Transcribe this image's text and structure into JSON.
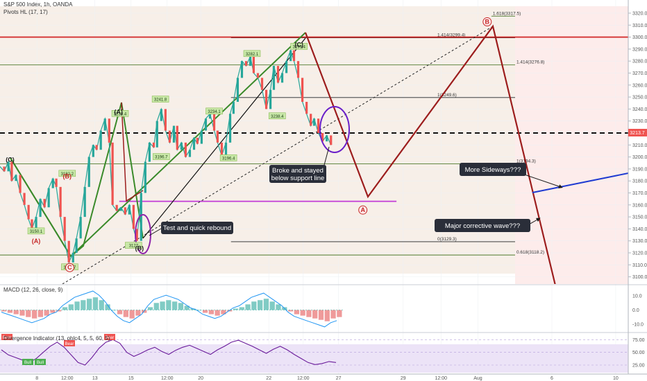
{
  "chart_data": {
    "type": "line",
    "title": "S&P 500 Index, 1h, OANDA",
    "indicator": "Pivots HL (17, 17)",
    "price_axis": {
      "min": 3090,
      "max": 3320,
      "ticks": [
        "3320.0",
        "3310.0",
        "3300.0",
        "3290.0",
        "3280.0",
        "3270.0",
        "3260.0",
        "3250.0",
        "3240.0",
        "3230.0",
        "3220.0",
        "3210.0",
        "3200.0",
        "3190.0",
        "3180.0",
        "3170.0",
        "3160.0",
        "3150.0",
        "3140.0",
        "3130.0",
        "3120.0",
        "3110.0",
        "3100.0",
        "3090.0"
      ],
      "last_price": "3213.7",
      "last_price_color": "#ef5350"
    },
    "time_axis": {
      "labels": [
        {
          "t": 4.4,
          "text": "8"
        },
        {
          "t": 8.0,
          "text": "12:00"
        },
        {
          "t": 11.3,
          "text": "13"
        },
        {
          "t": 15.6,
          "text": "15"
        },
        {
          "t": 19.9,
          "text": "12:00"
        },
        {
          "t": 23.9,
          "text": "20"
        },
        {
          "t": 32.0,
          "text": "22"
        },
        {
          "t": 36.1,
          "text": "12:00"
        },
        {
          "t": 40.3,
          "text": "27"
        },
        {
          "t": 48.0,
          "text": "29"
        },
        {
          "t": 52.5,
          "text": "12:00"
        },
        {
          "t": 56.9,
          "text": "Aug"
        },
        {
          "t": 65.7,
          "text": "6"
        },
        {
          "t": 73.3,
          "text": "10"
        }
      ]
    },
    "price_series": [
      {
        "t": 0.0,
        "p": 3192
      },
      {
        "t": 0.5,
        "p": 3188
      },
      {
        "t": 1.0,
        "p": 3196
      },
      {
        "t": 1.4,
        "p": 3180
      },
      {
        "t": 1.9,
        "p": 3185
      },
      {
        "t": 2.4,
        "p": 3170
      },
      {
        "t": 2.9,
        "p": 3160
      },
      {
        "t": 3.4,
        "p": 3148
      },
      {
        "t": 3.8,
        "p": 3140
      },
      {
        "t": 4.3,
        "p": 3150
      },
      {
        "t": 4.8,
        "p": 3165
      },
      {
        "t": 5.3,
        "p": 3158
      },
      {
        "t": 5.8,
        "p": 3174
      },
      {
        "t": 6.3,
        "p": 3182
      },
      {
        "t": 6.7,
        "p": 3175
      },
      {
        "t": 7.2,
        "p": 3150
      },
      {
        "t": 7.7,
        "p": 3130
      },
      {
        "t": 8.2,
        "p": 3112
      },
      {
        "t": 8.7,
        "p": 3120
      },
      {
        "t": 9.1,
        "p": 3132
      },
      {
        "t": 9.6,
        "p": 3150
      },
      {
        "t": 10.1,
        "p": 3175
      },
      {
        "t": 10.6,
        "p": 3200
      },
      {
        "t": 11.1,
        "p": 3210
      },
      {
        "t": 11.5,
        "p": 3206
      },
      {
        "t": 12.0,
        "p": 3222
      },
      {
        "t": 12.5,
        "p": 3232
      },
      {
        "t": 13.0,
        "p": 3212
      },
      {
        "t": 13.4,
        "p": 3160
      },
      {
        "t": 13.9,
        "p": 3155
      },
      {
        "t": 14.4,
        "p": 3158
      },
      {
        "t": 14.9,
        "p": 3152
      },
      {
        "t": 15.4,
        "p": 3160
      },
      {
        "t": 15.9,
        "p": 3140
      },
      {
        "t": 16.3,
        "p": 3130
      },
      {
        "t": 16.8,
        "p": 3170
      },
      {
        "t": 17.3,
        "p": 3196
      },
      {
        "t": 17.8,
        "p": 3212
      },
      {
        "t": 18.3,
        "p": 3208
      },
      {
        "t": 18.7,
        "p": 3230
      },
      {
        "t": 19.2,
        "p": 3240
      },
      {
        "t": 19.7,
        "p": 3222
      },
      {
        "t": 20.2,
        "p": 3212
      },
      {
        "t": 20.7,
        "p": 3226
      },
      {
        "t": 21.1,
        "p": 3206
      },
      {
        "t": 21.6,
        "p": 3212
      },
      {
        "t": 22.1,
        "p": 3200
      },
      {
        "t": 22.6,
        "p": 3206
      },
      {
        "t": 23.1,
        "p": 3216
      },
      {
        "t": 23.5,
        "p": 3211
      },
      {
        "t": 24.0,
        "p": 3222
      },
      {
        "t": 24.5,
        "p": 3232
      },
      {
        "t": 25.0,
        "p": 3236
      },
      {
        "t": 25.5,
        "p": 3222
      },
      {
        "t": 25.9,
        "p": 3212
      },
      {
        "t": 26.4,
        "p": 3201
      },
      {
        "t": 26.9,
        "p": 3212
      },
      {
        "t": 27.4,
        "p": 3236
      },
      {
        "t": 27.8,
        "p": 3246
      },
      {
        "t": 28.3,
        "p": 3266
      },
      {
        "t": 28.8,
        "p": 3280
      },
      {
        "t": 29.3,
        "p": 3276
      },
      {
        "t": 29.8,
        "p": 3284
      },
      {
        "t": 30.2,
        "p": 3270
      },
      {
        "t": 30.7,
        "p": 3266
      },
      {
        "t": 31.2,
        "p": 3256
      },
      {
        "t": 31.7,
        "p": 3240
      },
      {
        "t": 32.2,
        "p": 3256
      },
      {
        "t": 32.6,
        "p": 3276
      },
      {
        "t": 33.1,
        "p": 3262
      },
      {
        "t": 33.6,
        "p": 3270
      },
      {
        "t": 34.1,
        "p": 3280
      },
      {
        "t": 34.6,
        "p": 3289
      },
      {
        "t": 35.0,
        "p": 3280
      },
      {
        "t": 35.5,
        "p": 3266
      },
      {
        "t": 36.0,
        "p": 3246
      },
      {
        "t": 36.5,
        "p": 3236
      },
      {
        "t": 37.0,
        "p": 3226
      },
      {
        "t": 37.4,
        "p": 3232
      },
      {
        "t": 37.9,
        "p": 3220
      },
      {
        "t": 38.4,
        "p": 3213
      },
      {
        "t": 38.9,
        "p": 3218
      },
      {
        "t": 39.4,
        "p": 3210
      }
    ],
    "fib_levels": [
      {
        "t_start": 58.5,
        "text": "1.618(3317.5)",
        "price": 3317.5,
        "color": "#4c7a2c"
      },
      {
        "t_start": 27.5,
        "text": "1.414(3299.4)",
        "price": 3299.4,
        "color": "#222222"
      },
      {
        "t_start": 0,
        "text": "1.414(3276.8)",
        "price": 3276.8,
        "color": "#4c7a2c"
      },
      {
        "t_start": 27.5,
        "text": "1(3249.6)",
        "price": 3249.6,
        "color": "#222222"
      },
      {
        "t_start": 0,
        "text": "1(3194.3)",
        "price": 3194.3,
        "color": "#4c7a2c"
      },
      {
        "t_start": 27.5,
        "text": "0(3129.3)",
        "price": 3129.3,
        "color": "#222222"
      },
      {
        "t_start": 0,
        "text": "0.618(3118.2)",
        "price": 3118.2,
        "color": "#4c7a2c"
      }
    ],
    "horizontal_lines": [
      {
        "price": 3300,
        "color": "#d32f2f",
        "style": "solid"
      },
      {
        "price": 3220,
        "color": "#111111",
        "style": "dashed"
      },
      {
        "price": 3163,
        "color": "#c23bd6",
        "style": "solid",
        "t_start": 14.2,
        "t_end": 47.2
      }
    ],
    "pivot_labels": [
      {
        "t": 4.3,
        "p": 3138,
        "text": "3150.1"
      },
      {
        "t": 8.3,
        "p": 3108,
        "text": "3115.7"
      },
      {
        "t": 8.0,
        "p": 3186,
        "text": "3182.2"
      },
      {
        "t": 14.3,
        "p": 3236,
        "text": "3238.4"
      },
      {
        "t": 19.1,
        "p": 3248,
        "text": "3241.8"
      },
      {
        "t": 19.2,
        "p": 3200,
        "text": "3196.7"
      },
      {
        "t": 15.9,
        "p": 3126,
        "text": "3127"
      },
      {
        "t": 25.5,
        "p": 3238,
        "text": "3234.1"
      },
      {
        "t": 27.2,
        "p": 3199,
        "text": "3196.4"
      },
      {
        "t": 30.0,
        "p": 3286,
        "text": "3282.1"
      },
      {
        "t": 33.0,
        "p": 3234,
        "text": "3238.4"
      },
      {
        "t": 35.6,
        "p": 3292,
        "text": "3299.4"
      }
    ],
    "wave_labels": [
      {
        "t": 1.2,
        "p": 3196,
        "text": "(C)",
        "color": "#222222"
      },
      {
        "t": 4.3,
        "p": 3128,
        "text": "(A)",
        "color": "#c62828"
      },
      {
        "t": 8.0,
        "p": 3182,
        "text": "(B)",
        "color": "#c62828"
      },
      {
        "t": 8.3,
        "p": 3106,
        "text": "C",
        "color": "#c62828",
        "circled": true
      },
      {
        "t": 14.1,
        "p": 3236,
        "text": "(A)",
        "color": "#222222"
      },
      {
        "t": 16.6,
        "p": 3122,
        "text": "(B)",
        "color": "#222222"
      },
      {
        "t": 35.6,
        "p": 3292,
        "text": "(C)",
        "color": "#222222"
      },
      {
        "t": 43.2,
        "p": 3154,
        "text": "A",
        "color": "#c62828",
        "circled": true
      },
      {
        "t": 58.0,
        "p": 3311,
        "text": "B",
        "color": "#c62828",
        "circled": true
      }
    ],
    "callouts": [
      {
        "lines": [
          "Test and quick rebound"
        ]
      },
      {
        "lines": [
          "Broke and stayed",
          "below support line"
        ]
      },
      {
        "lines": [
          "More Sideways???"
        ]
      },
      {
        "lines": [
          "Major corrective wave???"
        ]
      }
    ],
    "macd": {
      "title": "MACD (12, 26, close, 9)",
      "ticks": [
        "10.0",
        "0.0",
        "-10.0"
      ],
      "min": -15,
      "max": 15,
      "values": [
        -1,
        -2,
        -3,
        -4,
        -5,
        -6,
        -5,
        -4,
        -2,
        -1,
        2,
        4,
        6,
        7,
        8,
        9,
        7,
        4,
        0,
        -3,
        -5,
        -6,
        -4,
        -2,
        2,
        5,
        6,
        7,
        6,
        5,
        3,
        1,
        0,
        -2,
        -3,
        -4,
        -3,
        -1,
        1,
        2,
        4,
        6,
        7,
        8,
        6,
        4,
        2,
        -1,
        -3,
        -4,
        -5,
        -6,
        -7,
        -8,
        -6,
        -5
      ]
    },
    "divergence": {
      "title": "Divergence Indicator (13, ohlc4, 5, 5, 60, 5)",
      "ticks": [
        "75.00",
        "50.00",
        "25.00"
      ],
      "min": 10,
      "max": 85,
      "values": [
        55,
        45,
        40,
        35,
        30,
        38,
        50,
        62,
        70,
        60,
        45,
        30,
        25,
        40,
        58,
        70,
        75,
        68,
        50,
        42,
        48,
        55,
        60,
        52,
        46,
        54,
        60,
        64,
        58,
        52,
        46,
        55,
        62,
        70,
        74,
        68,
        62,
        55,
        48,
        56,
        62,
        55,
        46,
        38,
        30,
        26,
        28,
        32,
        30
      ],
      "bull_labels": [
        "Bull",
        "Bull"
      ],
      "bear_labels": [
        "Bear",
        "Bear",
        "Bear"
      ]
    }
  }
}
